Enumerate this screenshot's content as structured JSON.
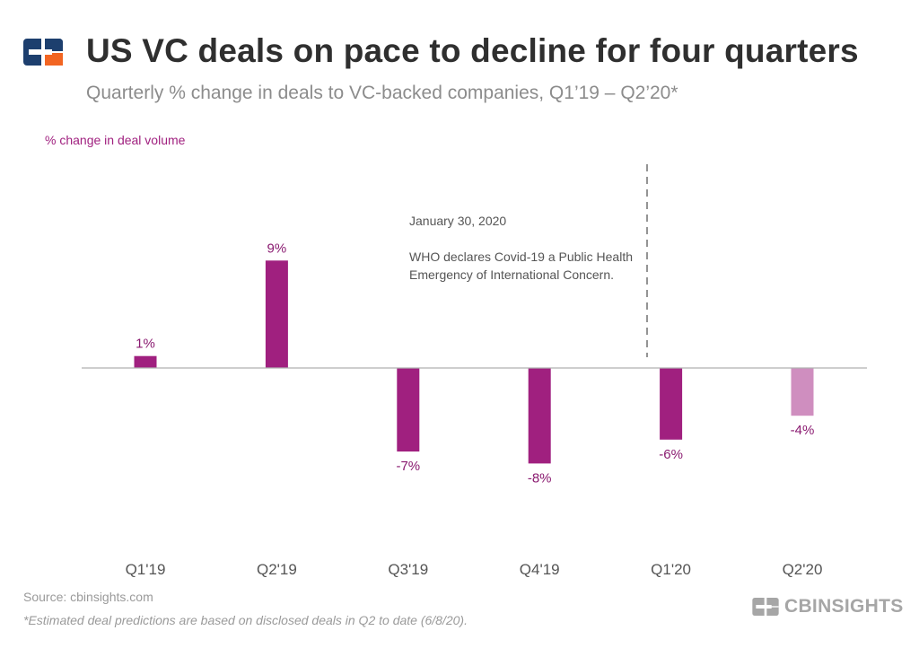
{
  "header": {
    "title": "US VC deals on pace to decline for four quarters",
    "subtitle": "Quarterly % change in deals to VC-backed companies, Q1’19 – Q2’20*",
    "logo_icon": "cb-insights-logo-icon"
  },
  "chart_data": {
    "type": "bar",
    "ylabel": "% change in deal volume",
    "categories": [
      "Q1'19",
      "Q2'19",
      "Q3'19",
      "Q4'19",
      "Q1'20",
      "Q2'20"
    ],
    "values": [
      1,
      9,
      -7,
      -8,
      -6,
      -4
    ],
    "value_labels": [
      "1%",
      "9%",
      "-7%",
      "-8%",
      "-6%",
      "-4%"
    ],
    "estimated": [
      false,
      false,
      false,
      false,
      false,
      true
    ],
    "ylim": [
      -15,
      17
    ],
    "grid": false,
    "annotation": {
      "date": "January 30, 2020",
      "text_line1": "WHO declares Covid-19 a Public Health",
      "text_line2": "Emergency of International Concern."
    },
    "colors": {
      "bar": "#a0207f",
      "bar_estimated": "#cf8ebf",
      "label": "#8a1a70",
      "axis": "#b0b0b0",
      "annotation_line": "#7a7a7a",
      "annotation_text": "#555555",
      "ylabel": "#a0207f",
      "tick_label": "#555555"
    }
  },
  "footer": {
    "source": "Source: cbinsights.com",
    "footnote": "*Estimated deal predictions are based on disclosed deals in Q2 to date (6/8/20).",
    "brand": "CBINSIGHTS"
  }
}
